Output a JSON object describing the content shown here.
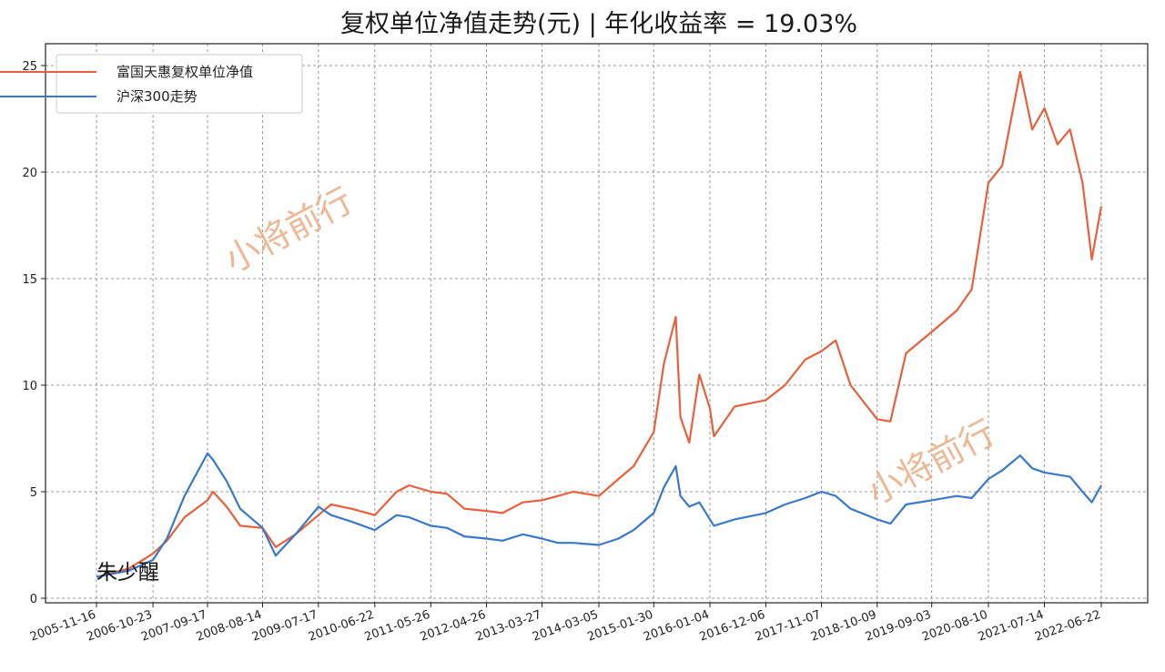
{
  "chart_data": {
    "type": "line",
    "title": "复权单位净值走势(元) | 年化收益率 = 19.03%",
    "xlabel": "",
    "ylabel": "",
    "ylim": [
      0,
      25
    ],
    "yticks": [
      0,
      5,
      10,
      15,
      20,
      25
    ],
    "grid": true,
    "legend_position": "top-left",
    "x_tick_labels": [
      "2005-11-16",
      "2006-10-23",
      "2007-09-17",
      "2008-08-14",
      "2009-07-17",
      "2010-06-22",
      "2011-05-26",
      "2012-04-26",
      "2013-03-27",
      "2014-03-05",
      "2015-01-30",
      "2016-01-04",
      "2016-12-06",
      "2017-11-07",
      "2018-10-09",
      "2019-09-03",
      "2020-08-10",
      "2021-07-14",
      "2022-06-22"
    ],
    "x": [
      "2005-11-16",
      "2006-06-01",
      "2006-10-23",
      "2007-01-15",
      "2007-05-01",
      "2007-09-17",
      "2007-10-20",
      "2008-01-10",
      "2008-04-01",
      "2008-08-14",
      "2008-11-01",
      "2009-03-01",
      "2009-07-17",
      "2009-10-01",
      "2010-02-01",
      "2010-06-22",
      "2010-11-01",
      "2011-01-15",
      "2011-05-26",
      "2011-09-01",
      "2011-12-15",
      "2012-04-26",
      "2012-08-01",
      "2012-12-01",
      "2013-03-27",
      "2013-07-01",
      "2013-10-01",
      "2014-03-05",
      "2014-07-01",
      "2014-10-01",
      "2015-01-30",
      "2015-04-01",
      "2015-06-12",
      "2015-07-10",
      "2015-09-01",
      "2015-11-01",
      "2016-01-04",
      "2016-01-28",
      "2016-06-01",
      "2016-12-06",
      "2017-04-01",
      "2017-08-01",
      "2017-11-07",
      "2018-02-01",
      "2018-05-01",
      "2018-10-09",
      "2018-12-28",
      "2019-04-01",
      "2019-09-03",
      "2020-02-01",
      "2020-05-01",
      "2020-08-10",
      "2020-11-01",
      "2021-02-18",
      "2021-05-01",
      "2021-07-14",
      "2021-10-01",
      "2021-12-15",
      "2022-03-01",
      "2022-04-26",
      "2022-06-22"
    ],
    "series": [
      {
        "name": "富国天惠复权单位净值",
        "color": "#e8603c",
        "values": [
          1.0,
          1.4,
          2.1,
          2.7,
          3.8,
          4.6,
          5.0,
          4.3,
          3.4,
          3.3,
          2.4,
          3.0,
          3.9,
          4.4,
          4.2,
          3.9,
          5.0,
          5.3,
          5.0,
          4.9,
          4.2,
          4.1,
          4.0,
          4.5,
          4.6,
          4.8,
          5.0,
          4.8,
          5.6,
          6.2,
          7.8,
          11.0,
          13.2,
          8.5,
          7.3,
          10.5,
          8.9,
          7.6,
          9.0,
          9.3,
          10.0,
          11.2,
          11.6,
          12.1,
          10.0,
          8.4,
          8.3,
          11.5,
          12.5,
          13.5,
          14.5,
          19.5,
          20.3,
          24.7,
          22.0,
          23.0,
          21.3,
          22.0,
          19.5,
          15.9,
          18.4
        ]
      },
      {
        "name": "沪深300走势",
        "color": "#3a78c9",
        "values": [
          1.0,
          1.3,
          1.8,
          2.8,
          4.8,
          6.8,
          6.5,
          5.5,
          4.2,
          3.3,
          2.0,
          3.0,
          4.3,
          3.9,
          3.6,
          3.2,
          3.9,
          3.8,
          3.4,
          3.3,
          2.9,
          2.8,
          2.7,
          3.0,
          2.8,
          2.6,
          2.6,
          2.5,
          2.8,
          3.2,
          4.0,
          5.2,
          6.2,
          4.8,
          4.3,
          4.5,
          3.7,
          3.4,
          3.7,
          4.0,
          4.4,
          4.7,
          5.0,
          4.8,
          4.2,
          3.7,
          3.5,
          4.4,
          4.6,
          4.8,
          4.7,
          5.6,
          6.0,
          6.7,
          6.1,
          5.9,
          5.8,
          5.7,
          5.0,
          4.5,
          5.3
        ]
      }
    ]
  },
  "watermarks": [
    "小将前行",
    "小将前行"
  ],
  "signature": "朱少醒"
}
